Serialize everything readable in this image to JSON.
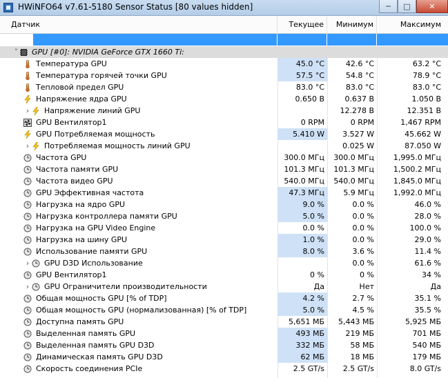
{
  "window": {
    "title": "HWiNFO64 v7.61-5180 Sensor Status [80 values hidden]"
  },
  "columns": {
    "sensor": "Датчик",
    "current": "Текущее",
    "min": "Минимум",
    "max": "Максимум"
  },
  "colors": {
    "selection": "#3399ff",
    "highlight": "#cfe1f6",
    "group": "#dcdcdc"
  },
  "rows": [
    {
      "name": "GPU [#0]: NVIDIA GeForce GTX 1660 Ti:",
      "icon": "chip",
      "indent": 1,
      "expander": "down",
      "group": true,
      "cur": "",
      "min": "",
      "max": ""
    },
    {
      "name": "Температура GPU",
      "icon": "thermometer",
      "indent": 2,
      "cur": "45.0 °C",
      "min": "42.6 °C",
      "max": "63.2 °C",
      "hl": true
    },
    {
      "name": "Температура горячей точки GPU",
      "icon": "thermometer",
      "indent": 2,
      "cur": "57.5 °C",
      "min": "54.8 °C",
      "max": "78.9 °C",
      "hl": true
    },
    {
      "name": "Тепловой предел GPU",
      "icon": "thermometer",
      "indent": 2,
      "cur": "83.0 °C",
      "min": "83.0 °C",
      "max": "83.0 °C"
    },
    {
      "name": "Напряжение ядра GPU",
      "icon": "lightning",
      "indent": 2,
      "cur": "0.650 В",
      "min": "0.637 В",
      "max": "1.050 В"
    },
    {
      "name": "Напряжение линий GPU",
      "icon": "lightning",
      "indent": 3,
      "expander": "right",
      "cur": "",
      "min": "12.278 В",
      "max": "12.351 В"
    },
    {
      "name": "GPU Вентилятор1",
      "icon": "fan",
      "indent": 2,
      "cur": "0 RPM",
      "min": "0 RPM",
      "max": "1,467 RPM"
    },
    {
      "name": "GPU Потребляемая мощность",
      "icon": "lightning",
      "indent": 2,
      "cur": "5.410 W",
      "min": "3.527 W",
      "max": "45.662 W",
      "hl": true
    },
    {
      "name": "Потребляемая мощность линий GPU",
      "icon": "lightning",
      "indent": 3,
      "expander": "right",
      "cur": "",
      "min": "0.025 W",
      "max": "87.050 W"
    },
    {
      "name": "Частота GPU",
      "icon": "clock",
      "indent": 2,
      "cur": "300.0 МГц",
      "min": "300.0 МГц",
      "max": "1,995.0 МГц"
    },
    {
      "name": "Частота памяти GPU",
      "icon": "clock",
      "indent": 2,
      "cur": "101.3 МГц",
      "min": "101.3 МГц",
      "max": "1,500.2 МГц"
    },
    {
      "name": "Частота видео GPU",
      "icon": "clock",
      "indent": 2,
      "cur": "540.0 МГц",
      "min": "540.0 МГц",
      "max": "1,845.0 МГц"
    },
    {
      "name": "GPU Эффективная частота",
      "icon": "clock",
      "indent": 2,
      "cur": "47.3 МГц",
      "min": "5.9 МГц",
      "max": "1,992.0 МГц",
      "hl": true
    },
    {
      "name": "Нагрузка на ядро GPU",
      "icon": "clock",
      "indent": 2,
      "cur": "9.0 %",
      "min": "0.0 %",
      "max": "46.0 %",
      "hl": true
    },
    {
      "name": "Нагрузка контроллера памяти GPU",
      "icon": "clock",
      "indent": 2,
      "cur": "5.0 %",
      "min": "0.0 %",
      "max": "28.0 %",
      "hl": true
    },
    {
      "name": "Нагрузка на GPU Video Engine",
      "icon": "clock",
      "indent": 2,
      "cur": "0.0 %",
      "min": "0.0 %",
      "max": "100.0 %"
    },
    {
      "name": "Нагрузка на шину GPU",
      "icon": "clock",
      "indent": 2,
      "cur": "1.0 %",
      "min": "0.0 %",
      "max": "29.0 %",
      "hl": true
    },
    {
      "name": "Использование памяти GPU",
      "icon": "clock",
      "indent": 2,
      "cur": "8.0 %",
      "min": "3.6 %",
      "max": "11.4 %",
      "hl": true
    },
    {
      "name": "GPU D3D Использование",
      "icon": "clock",
      "indent": 3,
      "expander": "right",
      "cur": "",
      "min": "0.0 %",
      "max": "61.6 %"
    },
    {
      "name": "GPU Вентилятор1",
      "icon": "clock",
      "indent": 2,
      "cur": "0 %",
      "min": "0 %",
      "max": "34 %"
    },
    {
      "name": "GPU Ограничители производительности",
      "icon": "clock",
      "indent": 3,
      "expander": "right",
      "cur": "Да",
      "min": "Нет",
      "max": "Да"
    },
    {
      "name": "Общая мощность GPU [% of TDP]",
      "icon": "clock",
      "indent": 2,
      "cur": "4.2 %",
      "min": "2.7 %",
      "max": "35.1 %",
      "hl": true
    },
    {
      "name": "Общая мощность GPU (нормализованная) [% of TDP]",
      "icon": "clock",
      "indent": 2,
      "cur": "5.0 %",
      "min": "4.5 %",
      "max": "35.5 %",
      "hl": true
    },
    {
      "name": "Доступна память GPU",
      "icon": "clock",
      "indent": 2,
      "cur": "5,651 МБ",
      "min": "5,443 МБ",
      "max": "5,925 МБ"
    },
    {
      "name": "Выделенная память GPU",
      "icon": "clock",
      "indent": 2,
      "cur": "493 МБ",
      "min": "219 МБ",
      "max": "701 МБ",
      "hl": true
    },
    {
      "name": "Выделенная память GPU D3D",
      "icon": "clock",
      "indent": 2,
      "cur": "332 МБ",
      "min": "58 МБ",
      "max": "540 МБ",
      "hl": true
    },
    {
      "name": "Динамическая память GPU D3D",
      "icon": "clock",
      "indent": 2,
      "cur": "62 МБ",
      "min": "18 МБ",
      "max": "179 МБ",
      "hl": true
    },
    {
      "name": "Скорость соединения PCIe",
      "icon": "clock",
      "indent": 2,
      "cur": "2.5 GT/s",
      "min": "2.5 GT/s",
      "max": "8.0 GT/s"
    }
  ]
}
